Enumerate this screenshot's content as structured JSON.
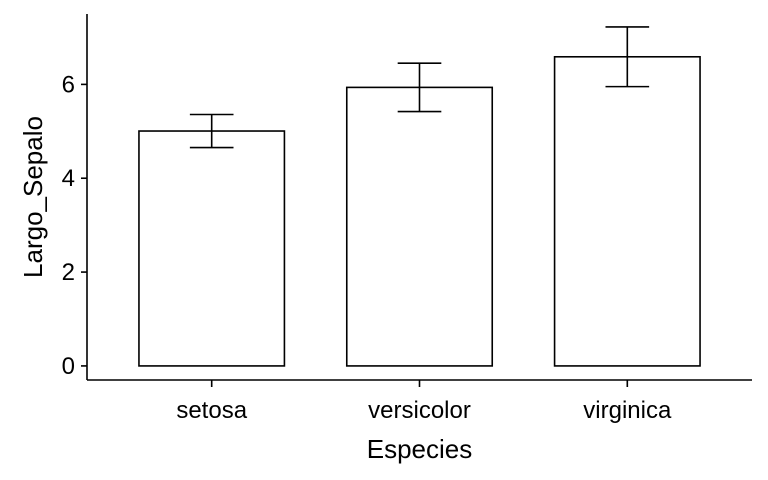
{
  "chart_data": {
    "type": "bar",
    "categories": [
      "setosa",
      "versicolor",
      "virginica"
    ],
    "values": [
      5.006,
      5.936,
      6.588
    ],
    "error_low": [
      4.654,
      5.42,
      5.952
    ],
    "error_high": [
      5.358,
      6.452,
      7.224
    ],
    "xlabel": "Especies",
    "ylabel": "Largo_Sepalo",
    "ylim": [
      -0.3,
      7.5
    ],
    "yticks": [
      0,
      2,
      4,
      6
    ],
    "grid": false,
    "legend": "none",
    "colors": {
      "bar_fill": "#ffffff",
      "stroke": "#000000"
    }
  }
}
